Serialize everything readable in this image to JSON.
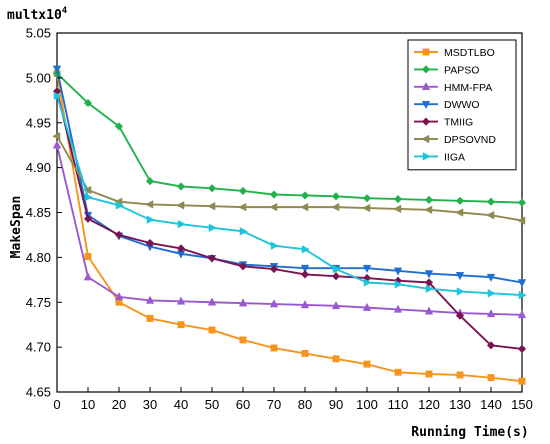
{
  "chart_data": {
    "type": "line",
    "multiplier_label": "multx10",
    "multiplier_exponent": "4",
    "xlabel": "Running Time(s)",
    "ylabel": "MakeSpan",
    "xlim": [
      0,
      150
    ],
    "ylim": [
      4.65,
      5.05
    ],
    "x_ticks": [
      0,
      10,
      20,
      30,
      40,
      50,
      60,
      70,
      80,
      90,
      100,
      110,
      120,
      130,
      140,
      150
    ],
    "y_ticks": [
      "4.65",
      "4.70",
      "4.75",
      "4.80",
      "4.85",
      "4.90",
      "4.95",
      "5.00",
      "5.05"
    ],
    "grid": false,
    "legend": "top-right",
    "x": [
      0,
      10,
      20,
      30,
      40,
      50,
      60,
      70,
      80,
      90,
      100,
      110,
      120,
      130,
      140,
      150
    ],
    "series": [
      {
        "name": "MSDTLBO",
        "color": "#f7941d",
        "marker": "square",
        "values": [
          5.005,
          4.801,
          4.75,
          4.732,
          4.725,
          4.719,
          4.708,
          4.699,
          4.693,
          4.687,
          4.681,
          4.672,
          4.67,
          4.669,
          4.666,
          4.662
        ]
      },
      {
        "name": "PAPSO",
        "color": "#21b24b",
        "marker": "diamond",
        "values": [
          5.005,
          4.972,
          4.946,
          4.885,
          4.879,
          4.877,
          4.874,
          4.87,
          4.869,
          4.868,
          4.866,
          4.865,
          4.864,
          4.863,
          4.862,
          4.861
        ]
      },
      {
        "name": "HMM-FPA",
        "color": "#9b59d0",
        "marker": "triangle-up",
        "values": [
          4.925,
          4.778,
          4.756,
          4.752,
          4.751,
          4.75,
          4.749,
          4.748,
          4.747,
          4.746,
          4.744,
          4.742,
          4.74,
          4.738,
          4.737,
          4.736
        ]
      },
      {
        "name": "DWWO",
        "color": "#1f6fd1",
        "marker": "triangle-down",
        "values": [
          5.01,
          4.847,
          4.824,
          4.812,
          4.804,
          4.799,
          4.792,
          4.79,
          4.788,
          4.788,
          4.788,
          4.785,
          4.782,
          4.78,
          4.778,
          4.772
        ]
      },
      {
        "name": "TMIIG",
        "color": "#7a1450",
        "marker": "diamond",
        "values": [
          4.985,
          4.843,
          4.825,
          4.816,
          4.81,
          4.799,
          4.79,
          4.787,
          4.781,
          4.779,
          4.777,
          4.774,
          4.772,
          4.735,
          4.702,
          4.698
        ]
      },
      {
        "name": "DPSOVND",
        "color": "#8e8a50",
        "marker": "triangle-left",
        "values": [
          4.935,
          4.875,
          4.862,
          4.859,
          4.858,
          4.857,
          4.856,
          4.856,
          4.856,
          4.856,
          4.855,
          4.854,
          4.853,
          4.85,
          4.847,
          4.841
        ]
      },
      {
        "name": "IIGA",
        "color": "#1ec4dc",
        "marker": "triangle-right",
        "values": [
          4.98,
          4.867,
          4.858,
          4.842,
          4.837,
          4.833,
          4.829,
          4.813,
          4.809,
          4.787,
          4.772,
          4.77,
          4.765,
          4.762,
          4.76,
          4.758
        ]
      }
    ]
  }
}
